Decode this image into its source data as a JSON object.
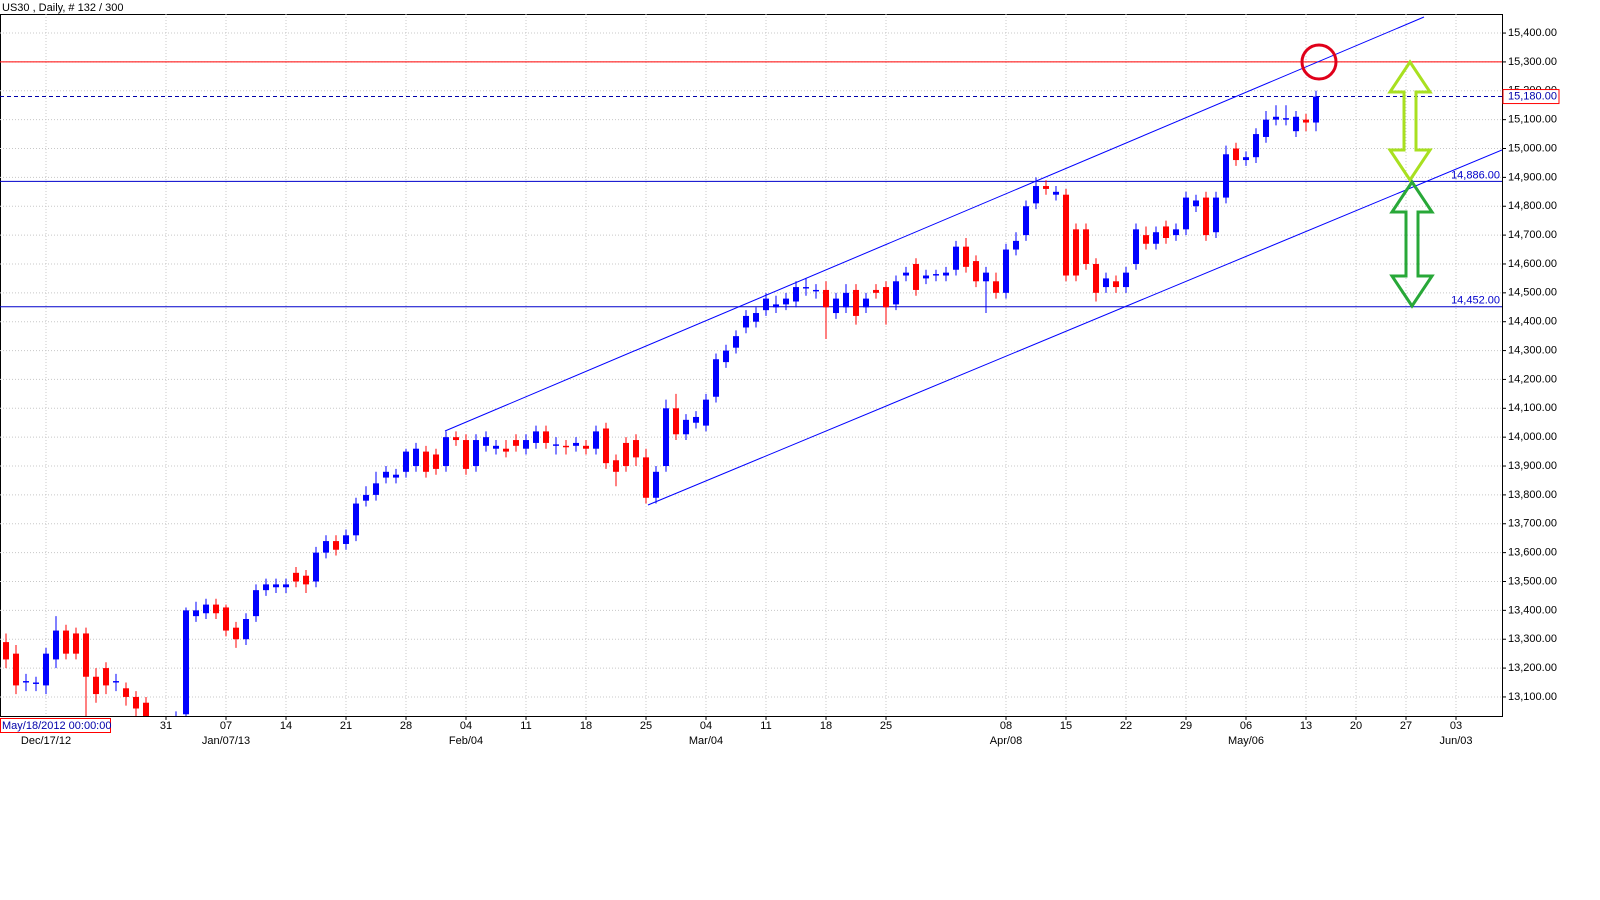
{
  "chart_data": {
    "type": "candlestick",
    "title": "US30 , Daily, # 132 / 300",
    "footer": "May/18/2012 00:00:00",
    "up_color": "#0000ff",
    "down_color": "#ff0000",
    "grid": true,
    "open": [
      13290,
      13250,
      13150,
      13145,
      13140,
      13230,
      13330,
      13320,
      13320,
      13170,
      13200,
      13150,
      13130,
      13100,
      13080,
      12990,
      12930,
      12940,
      13040,
      13380,
      13390,
      13420,
      13410,
      13340,
      13300,
      13380,
      13470,
      13480,
      13480,
      13530,
      13520,
      13500,
      13600,
      13640,
      13630,
      13660,
      13780,
      13800,
      13860,
      13860,
      13880,
      13900,
      13950,
      13940,
      13900,
      14000,
      13990,
      13900,
      13970,
      13960,
      13960,
      13990,
      13960,
      13980,
      14020,
      13970,
      13970,
      13970,
      13970,
      13960,
      14030,
      13920,
      13980,
      13990,
      13930,
      13790,
      13900,
      14100,
      14010,
      14050,
      14040,
      14140,
      14260,
      14310,
      14380,
      14400,
      14440,
      14450,
      14460,
      14470,
      14515,
      14505,
      14510,
      14430,
      14450,
      14510,
      14450,
      14510,
      14520,
      14460,
      14560,
      14600,
      14550,
      14560,
      14560,
      14580,
      14660,
      14610,
      14540,
      14540,
      14500,
      14650,
      14700,
      14810,
      14870,
      14840,
      14840,
      14720,
      14720,
      14600,
      14520,
      14540,
      14520,
      14600,
      14700,
      14670,
      14730,
      14700,
      14720,
      14800,
      14830,
      14710,
      14830,
      15000,
      14960,
      14970,
      15040,
      15100,
      15100,
      15060,
      15100,
      15090
    ],
    "high": [
      13320,
      13280,
      13180,
      13170,
      13270,
      13380,
      13350,
      13340,
      13340,
      13200,
      13220,
      13180,
      13150,
      13120,
      13100,
      13010,
      12960,
      13050,
      13410,
      13430,
      13440,
      13440,
      13420,
      13360,
      13390,
      13490,
      13510,
      13510,
      13510,
      13550,
      13540,
      13620,
      13660,
      13660,
      13680,
      13790,
      13830,
      13880,
      13900,
      13890,
      13960,
      13980,
      13970,
      13960,
      14020,
      14020,
      14010,
      14010,
      14020,
      13990,
      13990,
      14010,
      14010,
      14040,
      14040,
      14000,
      13990,
      14000,
      13990,
      14040,
      14050,
      13940,
      14000,
      14010,
      13960,
      13900,
      14130,
      14150,
      14080,
      14090,
      14150,
      14290,
      14320,
      14370,
      14440,
      14450,
      14500,
      14490,
      14500,
      14540,
      14550,
      14530,
      14540,
      14500,
      14530,
      14530,
      14500,
      14530,
      14540,
      14560,
      14590,
      14620,
      14580,
      14580,
      14590,
      14680,
      14690,
      14630,
      14590,
      14570,
      14670,
      14710,
      14820,
      14900,
      14890,
      14870,
      14860,
      14740,
      14740,
      14620,
      14570,
      14560,
      14590,
      14740,
      14730,
      14730,
      14750,
      14740,
      14850,
      14840,
      14850,
      14850,
      15010,
      15020,
      14990,
      15070,
      15130,
      15150,
      15150,
      15130,
      15120,
      15200
    ],
    "low": [
      13200,
      13110,
      13120,
      13120,
      13110,
      13200,
      13230,
      13230,
      13030,
      13080,
      13110,
      13120,
      13070,
      13030,
      12990,
      12920,
      12900,
      12920,
      13030,
      13360,
      13370,
      13370,
      13310,
      13270,
      13280,
      13360,
      13450,
      13460,
      13460,
      13480,
      13460,
      13480,
      13580,
      13590,
      13610,
      13640,
      13760,
      13780,
      13840,
      13840,
      13860,
      13880,
      13860,
      13870,
      13880,
      13970,
      13870,
      13880,
      13950,
      13940,
      13930,
      13950,
      13940,
      13960,
      13960,
      13940,
      13940,
      13950,
      13940,
      13940,
      13890,
      13830,
      13880,
      13900,
      13770,
      13770,
      13880,
      13990,
      13990,
      14030,
      14020,
      14120,
      14240,
      14290,
      14360,
      14380,
      14420,
      14430,
      14440,
      14450,
      14490,
      14480,
      14340,
      14410,
      14430,
      14390,
      14430,
      14480,
      14390,
      14440,
      14540,
      14490,
      14530,
      14540,
      14540,
      14560,
      14570,
      14520,
      14430,
      14480,
      14480,
      14630,
      14680,
      14790,
      14840,
      14820,
      14540,
      14540,
      14580,
      14470,
      14500,
      14500,
      14500,
      14580,
      14650,
      14650,
      14670,
      14680,
      14700,
      14780,
      14680,
      14690,
      14810,
      14940,
      14940,
      14950,
      15020,
      15080,
      15080,
      15040,
      15060,
      15060
    ],
    "close": [
      13230,
      13140,
      13155,
      13150,
      13250,
      13330,
      13250,
      13250,
      13170,
      13110,
      13140,
      13155,
      13100,
      13060,
      13020,
      12950,
      12938,
      13020,
      13400,
      13400,
      13420,
      13390,
      13330,
      13300,
      13370,
      13470,
      13490,
      13490,
      13490,
      13500,
      13490,
      13600,
      13640,
      13610,
      13660,
      13770,
      13800,
      13840,
      13880,
      13870,
      13950,
      13960,
      13880,
      13890,
      14000,
      13990,
      13890,
      13990,
      14000,
      13970,
      13950,
      13970,
      13990,
      14020,
      13980,
      13975,
      13965,
      13980,
      13960,
      14020,
      13910,
      13880,
      13900,
      13930,
      13790,
      13880,
      14100,
      14010,
      14060,
      14070,
      14130,
      14270,
      14300,
      14350,
      14420,
      14430,
      14480,
      14460,
      14480,
      14520,
      14520,
      14510,
      14450,
      14480,
      14500,
      14420,
      14480,
      14500,
      14450,
      14540,
      14570,
      14510,
      14560,
      14565,
      14570,
      14660,
      14590,
      14540,
      14570,
      14500,
      14650,
      14680,
      14800,
      14870,
      14860,
      14850,
      14560,
      14560,
      14600,
      14500,
      14550,
      14520,
      14570,
      14720,
      14670,
      14710,
      14690,
      14720,
      14830,
      14820,
      14700,
      14830,
      14980,
      14960,
      14970,
      15050,
      15100,
      15110,
      15105,
      15110,
      15090,
      15180
    ],
    "xlim": [
      -0.6,
      149.6
    ],
    "xticks": [
      {
        "value": 16,
        "label": "31"
      },
      {
        "value": 22,
        "label": "07"
      },
      {
        "value": 28,
        "label": "14"
      },
      {
        "value": 34,
        "label": "21"
      },
      {
        "value": 40,
        "label": "28"
      },
      {
        "value": 46,
        "label": "04"
      },
      {
        "value": 52,
        "label": "11"
      },
      {
        "value": 58,
        "label": "18"
      },
      {
        "value": 64,
        "label": "25"
      },
      {
        "value": 70,
        "label": "04"
      },
      {
        "value": 76,
        "label": "11"
      },
      {
        "value": 82,
        "label": "18"
      },
      {
        "value": 88,
        "label": "25"
      },
      {
        "value": 100,
        "label": "08"
      },
      {
        "value": 106,
        "label": "15"
      },
      {
        "value": 112,
        "label": "22"
      },
      {
        "value": 118,
        "label": "29"
      },
      {
        "value": 124,
        "label": "06"
      },
      {
        "value": 130,
        "label": "13"
      },
      {
        "value": 135,
        "label": "20"
      },
      {
        "value": 140,
        "label": "27"
      },
      {
        "value": 145,
        "label": "03"
      }
    ],
    "xticks_secondary": [
      {
        "value": 4,
        "label": "Dec/17/12"
      },
      {
        "value": 22,
        "label": "Jan/07/13"
      },
      {
        "value": 46,
        "label": "Feb/04"
      },
      {
        "value": 70,
        "label": "Mar/04"
      },
      {
        "value": 100,
        "label": "Apr/08"
      },
      {
        "value": 124,
        "label": "May/06"
      },
      {
        "value": 145,
        "label": "Jun/03"
      }
    ],
    "ylim": [
      13034,
      15466
    ],
    "yticks": [
      {
        "value": 13100,
        "label": "13,100.00"
      },
      {
        "value": 13200,
        "label": "13,200.00"
      },
      {
        "value": 13300,
        "label": "13,300.00"
      },
      {
        "value": 13400,
        "label": "13,400.00"
      },
      {
        "value": 13500,
        "label": "13,500.00"
      },
      {
        "value": 13600,
        "label": "13,600.00"
      },
      {
        "value": 13700,
        "label": "13,700.00"
      },
      {
        "value": 13800,
        "label": "13,800.00"
      },
      {
        "value": 13900,
        "label": "13,900.00"
      },
      {
        "value": 14000,
        "label": "14,000.00"
      },
      {
        "value": 14100,
        "label": "14,100.00"
      },
      {
        "value": 14200,
        "label": "14,200.00"
      },
      {
        "value": 14300,
        "label": "14,300.00"
      },
      {
        "value": 14400,
        "label": "14,400.00"
      },
      {
        "value": 14500,
        "label": "14,500.00"
      },
      {
        "value": 14600,
        "label": "14,600.00"
      },
      {
        "value": 14700,
        "label": "14,700.00"
      },
      {
        "value": 14800,
        "label": "14,800.00"
      },
      {
        "value": 14900,
        "label": "14,900.00"
      },
      {
        "value": 15000,
        "label": "15,000.00"
      },
      {
        "value": 15100,
        "label": "15,100.00"
      },
      {
        "value": 15200,
        "label": "15,200.00"
      },
      {
        "value": 15300,
        "label": "15,300.00"
      },
      {
        "value": 15400,
        "label": "15,400.00"
      }
    ],
    "levels": [
      {
        "value": 15300,
        "color": "#ff0000"
      },
      {
        "value": 15180,
        "label": "15,180.00",
        "color": "#0000aa",
        "dashed": true
      },
      {
        "value": 14886,
        "label": "14,886.00",
        "color": "#0000cc"
      },
      {
        "value": 14452,
        "label": "14,452.00",
        "color": "#0000cc"
      }
    ]
  }
}
